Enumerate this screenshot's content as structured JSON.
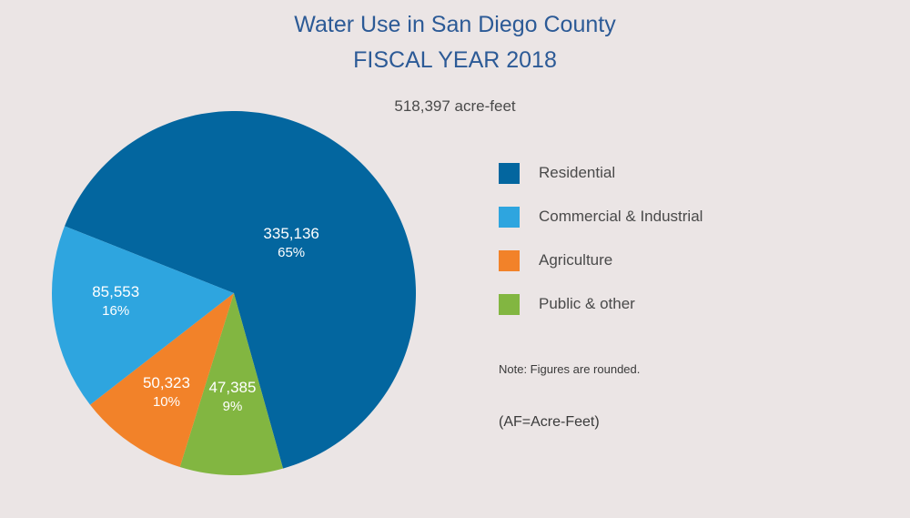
{
  "chart_data": {
    "type": "pie",
    "title": "Water Use in San Diego County",
    "subtitle": "FISCAL YEAR 2018",
    "total_label": "518,397 acre-feet",
    "slices": [
      {
        "label": "Residential",
        "value": 335136,
        "value_label": "335,136",
        "percent_label": "65%",
        "color": "#03669f"
      },
      {
        "label": "Public & other",
        "value": 47385,
        "value_label": "47,385",
        "percent_label": "9%",
        "color": "#82b641"
      },
      {
        "label": "Agriculture",
        "value": 50323,
        "value_label": "50,323",
        "percent_label": "10%",
        "color": "#f28229"
      },
      {
        "label": "Commercial & Industrial",
        "value": 85553,
        "value_label": "85,553",
        "percent_label": "16%",
        "color": "#2ea5df"
      }
    ],
    "legend": {
      "placement": "right",
      "items": [
        {
          "label": "Residential",
          "color": "#03669f"
        },
        {
          "label": "Commercial & Industrial",
          "color": "#2ea5df"
        },
        {
          "label": "Agriculture",
          "color": "#f28229"
        },
        {
          "label": "Public & other",
          "color": "#82b641"
        }
      ]
    },
    "note": "Note: Figures are rounded.",
    "abbreviation": "(AF=Acre-Feet)"
  }
}
